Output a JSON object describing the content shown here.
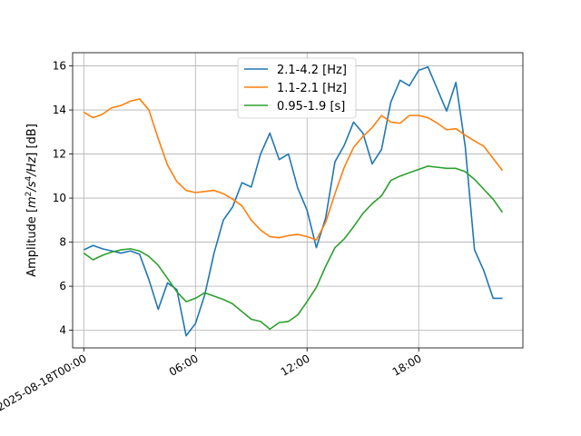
{
  "chart_data": {
    "type": "line",
    "ylabel_parts": {
      "prefix": "Amplitude [",
      "m": "m",
      "m_exp": "2",
      "s_sep": "/s",
      "s_exp": "4",
      "suffix_hz": "/Hz",
      "suffix": "] [dB]"
    },
    "xlim": [
      -0.6,
      23.6
    ],
    "ylim": [
      3.2,
      16.6
    ],
    "x_ticks": [
      {
        "value": 0,
        "label": "2025-08-18T00:00"
      },
      {
        "value": 6,
        "label": "06:00"
      },
      {
        "value": 12,
        "label": "12:00"
      },
      {
        "value": 18,
        "label": "18:00"
      }
    ],
    "y_ticks": [
      {
        "value": 4,
        "label": "4"
      },
      {
        "value": 6,
        "label": "6"
      },
      {
        "value": 8,
        "label": "8"
      },
      {
        "value": 10,
        "label": "10"
      },
      {
        "value": 12,
        "label": "12"
      },
      {
        "value": 14,
        "label": "14"
      },
      {
        "value": 16,
        "label": "16"
      }
    ],
    "grid": true,
    "legend_position": "top-center",
    "x": [
      0,
      0.5,
      1,
      1.5,
      2,
      2.5,
      3,
      3.5,
      4,
      4.5,
      5,
      5.5,
      6,
      6.5,
      7,
      7.5,
      8,
      8.5,
      9,
      9.5,
      10,
      10.5,
      11,
      11.5,
      12,
      12.5,
      13,
      13.5,
      14,
      14.5,
      15,
      15.5,
      16,
      16.5,
      17,
      17.5,
      18,
      18.5,
      19,
      19.5,
      20,
      20.5,
      21,
      21.5,
      22,
      22.5
    ],
    "series": [
      {
        "name": "2.1-4.2 [Hz]",
        "color": "#1f77b4",
        "values": [
          7.65,
          7.85,
          7.7,
          7.6,
          7.5,
          7.6,
          7.45,
          6.3,
          4.95,
          6.15,
          5.85,
          3.75,
          4.3,
          5.6,
          7.5,
          9.0,
          9.6,
          10.7,
          10.5,
          12.0,
          12.95,
          11.75,
          12.0,
          10.45,
          9.45,
          7.75,
          9.1,
          11.65,
          12.4,
          13.45,
          12.95,
          11.55,
          12.2,
          14.35,
          15.35,
          15.1,
          15.8,
          15.95,
          14.95,
          13.95,
          15.25,
          12.35,
          7.65,
          6.7,
          5.45,
          5.45
        ]
      },
      {
        "name": "1.1-2.1 [Hz]",
        "color": "#ff7f0e",
        "values": [
          13.9,
          13.65,
          13.8,
          14.1,
          14.2,
          14.4,
          14.5,
          14.0,
          12.7,
          11.5,
          10.75,
          10.35,
          10.25,
          10.3,
          10.35,
          10.2,
          9.95,
          9.65,
          9.0,
          8.55,
          8.25,
          8.2,
          8.3,
          8.35,
          8.25,
          8.1,
          8.9,
          10.2,
          11.4,
          12.3,
          12.8,
          13.2,
          13.75,
          13.45,
          13.4,
          13.75,
          13.75,
          13.65,
          13.4,
          13.1,
          13.15,
          12.85,
          12.6,
          12.35,
          11.8,
          11.25
        ]
      },
      {
        "name": "0.95-1.9 [s]",
        "color": "#2ca02c",
        "values": [
          7.5,
          7.2,
          7.4,
          7.55,
          7.65,
          7.7,
          7.6,
          7.35,
          6.95,
          6.35,
          5.75,
          5.3,
          5.45,
          5.7,
          5.55,
          5.4,
          5.2,
          4.85,
          4.5,
          4.4,
          4.05,
          4.35,
          4.4,
          4.7,
          5.3,
          5.95,
          6.9,
          7.75,
          8.15,
          8.7,
          9.3,
          9.75,
          10.1,
          10.8,
          11.0,
          11.15,
          11.3,
          11.45,
          11.4,
          11.35,
          11.35,
          11.2,
          10.85,
          10.4,
          9.95,
          9.35
        ]
      }
    ]
  }
}
